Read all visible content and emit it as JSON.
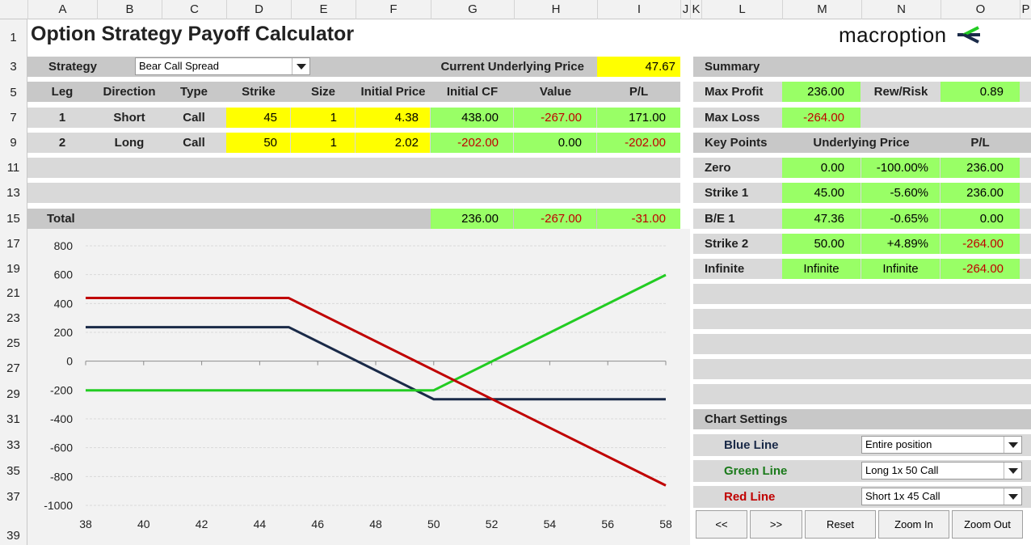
{
  "col_headers": [
    "A",
    "B",
    "C",
    "D",
    "E",
    "F",
    "G",
    "H",
    "I",
    "J",
    "K",
    "L",
    "M",
    "N",
    "O",
    "P"
  ],
  "row_headers": [
    "1",
    "3",
    "5",
    "7",
    "9",
    "11",
    "13",
    "15",
    "17",
    "19",
    "21",
    "23",
    "25",
    "27",
    "29",
    "31",
    "33",
    "35",
    "37",
    "39"
  ],
  "title": "Option Strategy Payoff Calculator",
  "logo_text": "macroption",
  "strategy": {
    "label": "Strategy",
    "value": "Bear Call Spread"
  },
  "underlying": {
    "label": "Current Underlying Price",
    "value": "47.67"
  },
  "legs_table": {
    "headers": [
      "Leg",
      "Direction",
      "Type",
      "Strike",
      "Size",
      "Initial Price",
      "Initial CF",
      "Value",
      "P/L"
    ],
    "rows": [
      {
        "leg": "1",
        "direction": "Short",
        "type": "Call",
        "strike": "45",
        "size": "1",
        "initial_price": "4.38",
        "initial_cf": "438.00",
        "value": "-267.00",
        "pl": "171.00"
      },
      {
        "leg": "2",
        "direction": "Long",
        "type": "Call",
        "strike": "50",
        "size": "1",
        "initial_price": "2.02",
        "initial_cf": "-202.00",
        "value": "0.00",
        "pl": "-202.00"
      }
    ],
    "total": {
      "label": "Total",
      "initial_cf": "236.00",
      "value": "-267.00",
      "pl": "-31.00"
    }
  },
  "summary": {
    "label": "Summary",
    "max_profit_label": "Max Profit",
    "max_profit": "236.00",
    "rew_risk_label": "Rew/Risk",
    "rew_risk": "0.89",
    "max_loss_label": "Max Loss",
    "max_loss": "-264.00"
  },
  "key_points": {
    "headers": [
      "Key Points",
      "Underlying Price",
      "P/L"
    ],
    "rows": [
      {
        "label": "Zero",
        "price": "0.00",
        "pct": "-100.00%",
        "pl": "236.00"
      },
      {
        "label": "Strike 1",
        "price": "45.00",
        "pct": "-5.60%",
        "pl": "236.00"
      },
      {
        "label": "B/E 1",
        "price": "47.36",
        "pct": "-0.65%",
        "pl": "0.00"
      },
      {
        "label": "Strike 2",
        "price": "50.00",
        "pct": "+4.89%",
        "pl": "-264.00"
      },
      {
        "label": "Infinite",
        "price": "Infinite",
        "pct": "Infinite",
        "pl": "-264.00"
      }
    ]
  },
  "chart_settings": {
    "label": "Chart Settings",
    "blue_label": "Blue Line",
    "blue_value": "Entire position",
    "green_label": "Green Line",
    "green_value": "Long 1x 50 Call",
    "red_label": "Red Line",
    "red_value": "Short 1x 45 Call"
  },
  "buttons": {
    "prev": "<<",
    "next": ">>",
    "reset": "Reset",
    "zoom_in": "Zoom In",
    "zoom_out": "Zoom Out"
  },
  "colors": {
    "blue": "#1a2a48",
    "green": "#22cc22",
    "red": "#c00000",
    "yellow": "#ffff00",
    "cell_green": "#99ff66"
  },
  "chart_data": {
    "type": "line",
    "xlim": [
      38,
      58
    ],
    "ylim": [
      -1000,
      800
    ],
    "x_ticks": [
      38,
      40,
      42,
      44,
      46,
      48,
      50,
      52,
      54,
      56,
      58
    ],
    "y_ticks": [
      800,
      600,
      400,
      200,
      0,
      -200,
      -400,
      -600,
      -800,
      -1000
    ],
    "grid": true,
    "series": [
      {
        "name": "Blue Line",
        "color": "#1a2a48",
        "x": [
          38,
          45,
          50,
          58
        ],
        "y": [
          236,
          236,
          -264,
          -264
        ]
      },
      {
        "name": "Green Line",
        "color": "#22cc22",
        "x": [
          38,
          50,
          58
        ],
        "y": [
          -202,
          -202,
          598
        ]
      },
      {
        "name": "Red Line",
        "color": "#c00000",
        "x": [
          38,
          45,
          58
        ],
        "y": [
          438,
          438,
          -862
        ]
      }
    ]
  }
}
